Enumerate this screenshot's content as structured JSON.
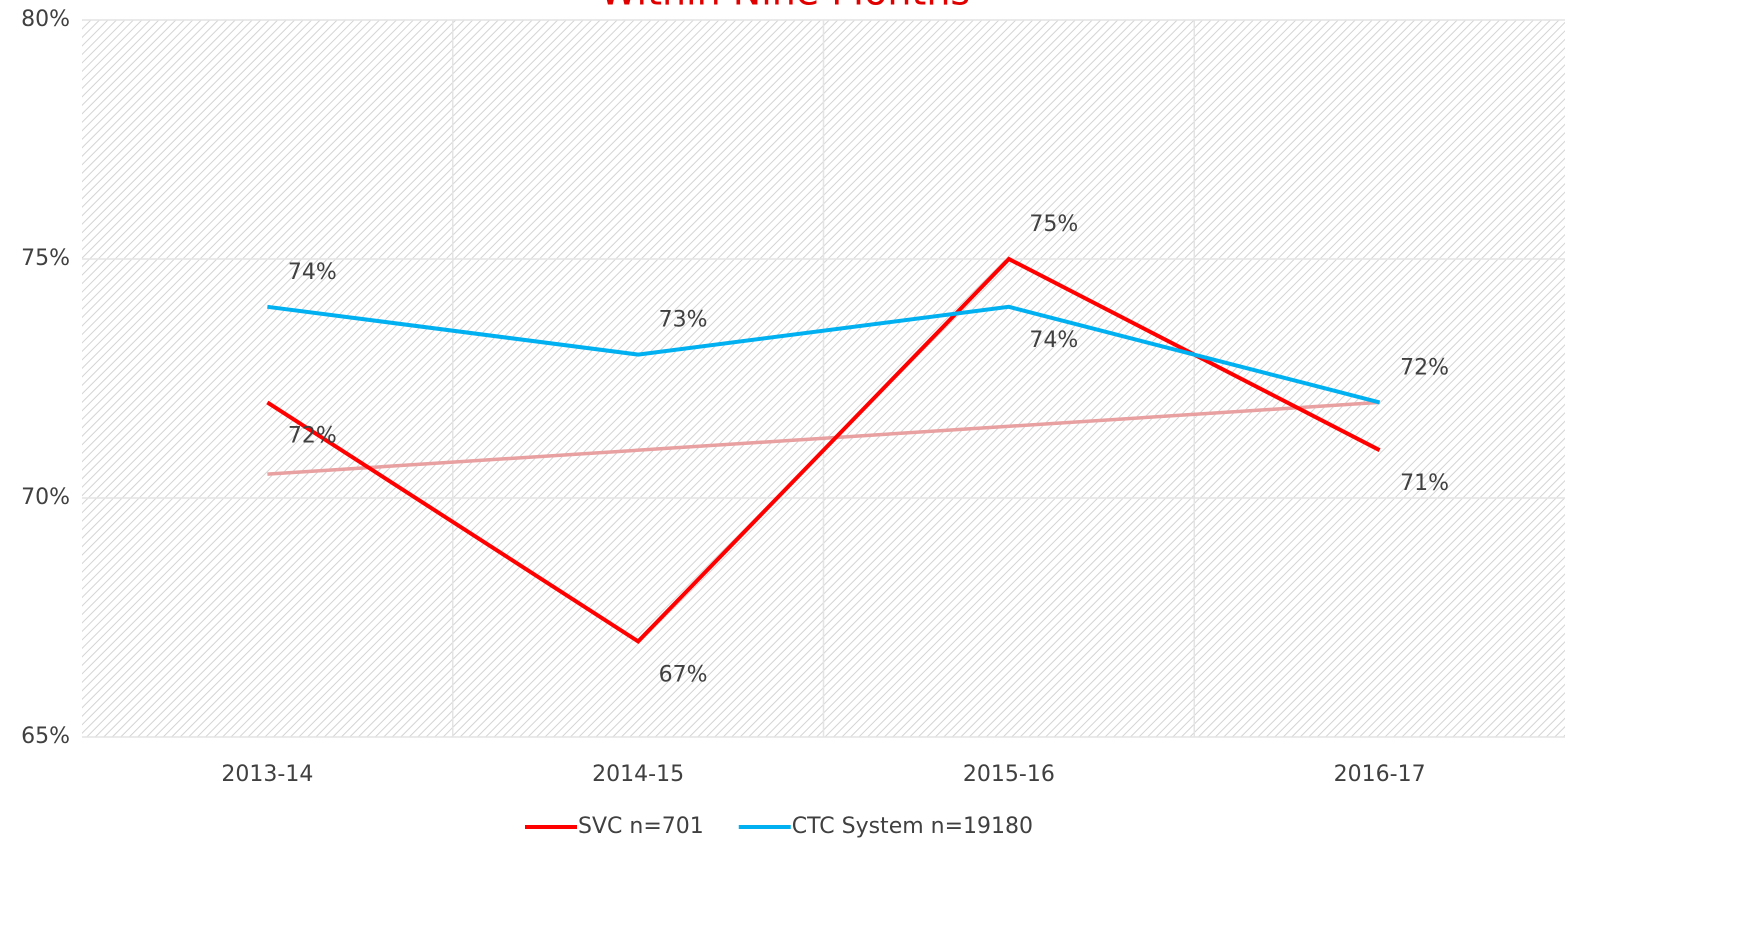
{
  "chart_data": {
    "type": "line",
    "title": "Within Nine Months",
    "categories": [
      "2013-14",
      "2014-15",
      "2015-16",
      "2016-17"
    ],
    "series": [
      {
        "name": "SVC n=701",
        "color": "#ff0000",
        "values": [
          72,
          67,
          75,
          71
        ],
        "value_labels": [
          "72%",
          "67%",
          "75%",
          "71%"
        ],
        "trendline": true,
        "trendline_color": "#e8a0a0"
      },
      {
        "name": "CTC System n=19180",
        "color": "#00b0f0",
        "values": [
          74,
          73,
          74,
          72
        ],
        "value_labels": [
          "74%",
          "73%",
          "74%",
          "72%"
        ]
      }
    ],
    "ylim": [
      65,
      80
    ],
    "yticks": [
      {
        "value": 65,
        "label": "65%"
      },
      {
        "value": 70,
        "label": "70%"
      },
      {
        "value": 75,
        "label": "75%"
      },
      {
        "value": 80,
        "label": "80%"
      }
    ],
    "grid": true,
    "legend": "bottom"
  }
}
